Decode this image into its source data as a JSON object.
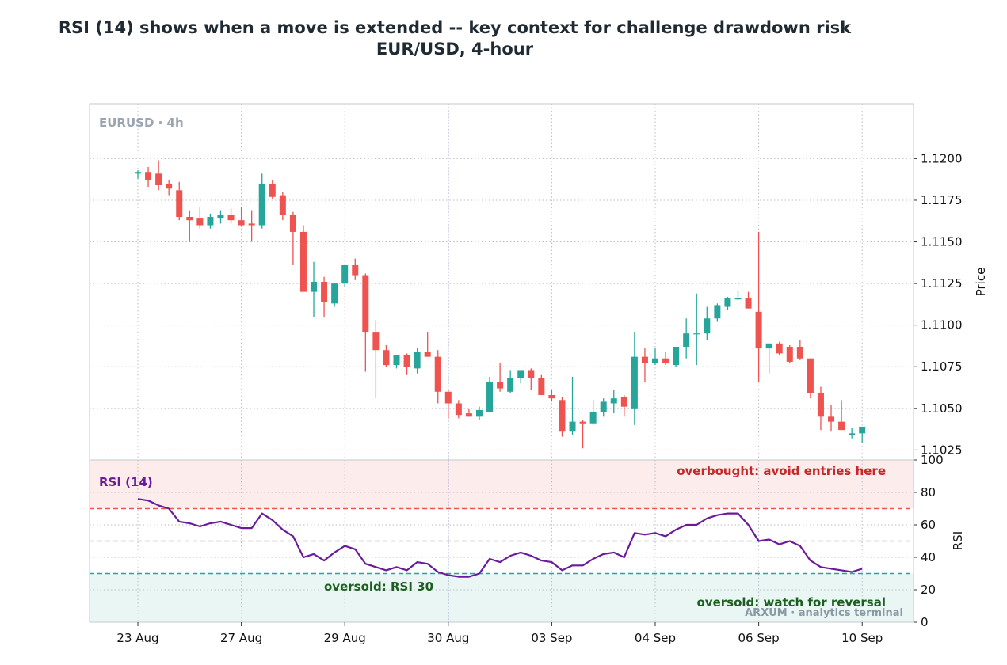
{
  "title": "RSI (14) shows when a move is extended -- key context for challenge drawdown risk",
  "subtitle": "EUR/USD, 4-hour",
  "watermark": "EURUSD · 4h",
  "footer": "ARXUM · analytics terminal",
  "colors": {
    "up": "#26a69a",
    "down": "#ef5350",
    "rsi_line": "#6a1b9a",
    "overbought_line": "#ef5350",
    "oversold_line": "#26a69a",
    "overbought_zone": "#fdecec",
    "oversold_zone": "#eaf6f4",
    "overbought_text": "#c62828",
    "oversold_text": "#1b5e20",
    "marker": "#7986cb"
  },
  "chart_data": [
    {
      "type": "candlestick",
      "ylabel": "Price",
      "ylim": [
        1.1019,
        1.1233
      ],
      "yticks": [
        "1.1025",
        "1.1050",
        "1.1075",
        "1.1100",
        "1.1125",
        "1.1150",
        "1.1175",
        "1.1200"
      ],
      "xticks": [
        "23 Aug",
        "27 Aug",
        "29 Aug",
        "30 Aug",
        "03 Sep",
        "04 Sep",
        "06 Sep",
        "10 Sep"
      ],
      "xtick_index": [
        0,
        10,
        20,
        30,
        40,
        50,
        60,
        70
      ],
      "marker_index": 30,
      "series": [
        {
          "values": [
            [
              1.1191,
              1.1193,
              1.1188,
              1.1192
            ],
            [
              1.1192,
              1.1195,
              1.1183,
              1.1187
            ],
            [
              1.1191,
              1.1199,
              1.1181,
              1.1184
            ],
            [
              1.1185,
              1.1187,
              1.1178,
              1.1182
            ],
            [
              1.1181,
              1.1186,
              1.1163,
              1.1165
            ],
            [
              1.1165,
              1.1169,
              1.115,
              1.1163
            ],
            [
              1.1164,
              1.1171,
              1.1158,
              1.116
            ],
            [
              1.116,
              1.1167,
              1.1158,
              1.1165
            ],
            [
              1.1164,
              1.1169,
              1.1161,
              1.1166
            ],
            [
              1.1166,
              1.117,
              1.1161,
              1.1163
            ],
            [
              1.1163,
              1.1171,
              1.1159,
              1.116
            ],
            [
              1.1161,
              1.1169,
              1.115,
              1.116
            ],
            [
              1.116,
              1.1191,
              1.1158,
              1.1185
            ],
            [
              1.1185,
              1.1187,
              1.1176,
              1.1177
            ],
            [
              1.1178,
              1.118,
              1.1163,
              1.1166
            ],
            [
              1.1166,
              1.1168,
              1.1136,
              1.1156
            ],
            [
              1.1156,
              1.116,
              1.1121,
              1.112
            ],
            [
              1.112,
              1.1138,
              1.1105,
              1.1126
            ],
            [
              1.1126,
              1.1129,
              1.1105,
              1.1114
            ],
            [
              1.1113,
              1.1124,
              1.1111,
              1.1125
            ],
            [
              1.1125,
              1.1136,
              1.1123,
              1.1136
            ],
            [
              1.1136,
              1.114,
              1.1127,
              1.113
            ],
            [
              1.113,
              1.1131,
              1.1072,
              1.1096
            ],
            [
              1.1096,
              1.1103,
              1.1056,
              1.1085
            ],
            [
              1.1085,
              1.1088,
              1.1075,
              1.1076
            ],
            [
              1.1076,
              1.1082,
              1.1074,
              1.1082
            ],
            [
              1.1082,
              1.1083,
              1.107,
              1.1075
            ],
            [
              1.1074,
              1.1086,
              1.1071,
              1.1084
            ],
            [
              1.1084,
              1.1096,
              1.1081,
              1.1081
            ],
            [
              1.1081,
              1.1085,
              1.1053,
              1.106
            ],
            [
              1.106,
              1.1061,
              1.1044,
              1.1053
            ],
            [
              1.1053,
              1.1055,
              1.1044,
              1.1046
            ],
            [
              1.1047,
              1.105,
              1.1045,
              1.1045
            ],
            [
              1.1045,
              1.1051,
              1.1043,
              1.1049
            ],
            [
              1.1048,
              1.1069,
              1.1048,
              1.1066
            ],
            [
              1.1066,
              1.1077,
              1.106,
              1.1062
            ],
            [
              1.106,
              1.1073,
              1.1059,
              1.1068
            ],
            [
              1.1068,
              1.1073,
              1.1065,
              1.1073
            ],
            [
              1.1073,
              1.1074,
              1.1061,
              1.1068
            ],
            [
              1.1068,
              1.107,
              1.1058,
              1.1058
            ],
            [
              1.1058,
              1.1061,
              1.1054,
              1.1056
            ],
            [
              1.1055,
              1.1057,
              1.1033,
              1.1036
            ],
            [
              1.1036,
              1.1069,
              1.1034,
              1.1042
            ],
            [
              1.1042,
              1.1043,
              1.1026,
              1.1041
            ],
            [
              1.1041,
              1.1055,
              1.104,
              1.1048
            ],
            [
              1.1048,
              1.1056,
              1.1045,
              1.1054
            ],
            [
              1.1053,
              1.1061,
              1.1047,
              1.1056
            ],
            [
              1.1057,
              1.1058,
              1.1045,
              1.1051
            ],
            [
              1.105,
              1.1096,
              1.104,
              1.1081
            ],
            [
              1.1081,
              1.1086,
              1.1066,
              1.1077
            ],
            [
              1.1077,
              1.1086,
              1.1076,
              1.108
            ],
            [
              1.108,
              1.1084,
              1.1076,
              1.1077
            ],
            [
              1.1076,
              1.1087,
              1.1075,
              1.1087
            ],
            [
              1.1087,
              1.1104,
              1.108,
              1.1095
            ],
            [
              1.1095,
              1.1119,
              1.1076,
              1.1095
            ],
            [
              1.1095,
              1.1111,
              1.1091,
              1.1104
            ],
            [
              1.1104,
              1.1113,
              1.1102,
              1.1112
            ],
            [
              1.1111,
              1.1117,
              1.1109,
              1.1116
            ],
            [
              1.1116,
              1.1121,
              1.1115,
              1.1116
            ],
            [
              1.1116,
              1.112,
              1.111,
              1.111
            ],
            [
              1.1108,
              1.1156,
              1.1066,
              1.1086
            ],
            [
              1.1086,
              1.1089,
              1.1071,
              1.1089
            ],
            [
              1.1089,
              1.109,
              1.1082,
              1.1083
            ],
            [
              1.1087,
              1.1088,
              1.1077,
              1.1078
            ],
            [
              1.1087,
              1.1091,
              1.1079,
              1.108
            ],
            [
              1.108,
              1.108,
              1.1056,
              1.1059
            ],
            [
              1.1059,
              1.1063,
              1.1037,
              1.1045
            ],
            [
              1.1045,
              1.1052,
              1.1036,
              1.1042
            ],
            [
              1.1042,
              1.1055,
              1.1037,
              1.1037
            ],
            [
              1.1034,
              1.1038,
              1.1032,
              1.1035
            ],
            [
              1.1035,
              1.1039,
              1.1029,
              1.1039
            ]
          ]
        }
      ]
    },
    {
      "type": "line",
      "title": "RSI (14)",
      "ylabel": "RSI",
      "ylim": [
        0,
        100
      ],
      "yticks": [
        "0",
        "20",
        "40",
        "60",
        "80",
        "100"
      ],
      "hlines": [
        70,
        50,
        30
      ],
      "zones": [
        [
          70,
          100
        ],
        [
          0,
          30
        ]
      ],
      "annotations": {
        "overbought": "overbought: avoid entries here",
        "oversold_level": "oversold: RSI 30",
        "oversold_zone": "oversold: watch for reversal"
      },
      "series": [
        {
          "name": "RSI (14)",
          "values": [
            76,
            75,
            72,
            70,
            62,
            61,
            59,
            61,
            62,
            60,
            58,
            58,
            67,
            63,
            57,
            53,
            40,
            42,
            38,
            43,
            47,
            45,
            36,
            34,
            32,
            34,
            32,
            37,
            36,
            31,
            29,
            28,
            28,
            30,
            39,
            37,
            41,
            43,
            41,
            38,
            37,
            32,
            35,
            35,
            39,
            42,
            43,
            40,
            55,
            54,
            55,
            53,
            57,
            60,
            60,
            64,
            66,
            67,
            67,
            60,
            50,
            51,
            48,
            50,
            47,
            38,
            34,
            33,
            32,
            31,
            33
          ]
        }
      ]
    }
  ]
}
